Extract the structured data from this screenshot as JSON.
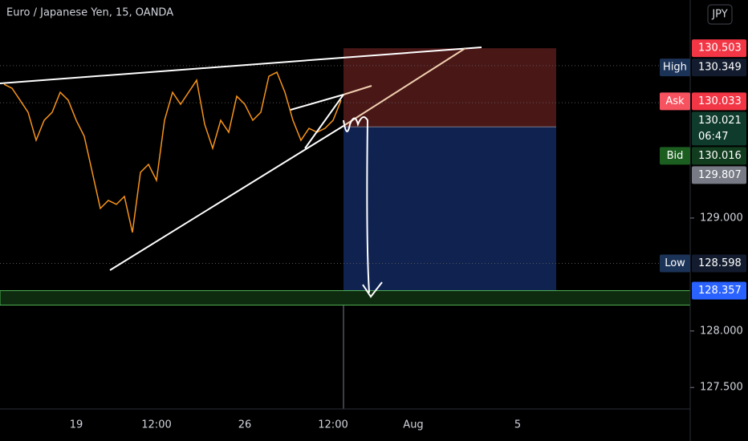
{
  "chart_data": {
    "type": "line",
    "title": "Euro / Japanese Yen, 15, OANDA",
    "currency": "JPY",
    "categories": [
      null,
      null,
      null,
      null,
      null,
      null,
      null,
      null,
      null,
      "19",
      null,
      null,
      null,
      null,
      null,
      null,
      null,
      null,
      null,
      "12:00",
      null,
      null,
      null,
      null,
      null,
      null,
      null,
      null,
      null,
      null,
      "26",
      null,
      null,
      null,
      null,
      null,
      null,
      null,
      null,
      null,
      null,
      "12:00",
      null,
      null,
      null,
      null,
      null,
      null,
      null,
      null,
      null,
      "Aug",
      null,
      null,
      null,
      null,
      null,
      null,
      null,
      null,
      null,
      null,
      null,
      null,
      "5",
      null,
      null,
      null,
      null,
      null,
      null,
      null,
      null,
      null,
      null,
      null,
      null,
      null,
      null,
      null,
      null,
      null,
      null,
      null,
      null,
      null
    ],
    "values": [
      130.184,
      130.149,
      130.043,
      129.936,
      129.688,
      129.865,
      129.936,
      130.113,
      130.043,
      129.865,
      129.723,
      129.404,
      129.085,
      129.156,
      129.121,
      129.191,
      128.872,
      129.404,
      129.475,
      129.333,
      129.865,
      130.113,
      130.007,
      130.113,
      130.22,
      129.83,
      129.617,
      129.865,
      129.759,
      130.078,
      130.007,
      129.865,
      129.936,
      130.255,
      130.291,
      130.113,
      129.865,
      129.688,
      129.794,
      129.759,
      129.794,
      129.865,
      130.043,
      null,
      null,
      null,
      null,
      null,
      null,
      null,
      null,
      null,
      null,
      null,
      null,
      null,
      null,
      null,
      null,
      null,
      null,
      null,
      null,
      null,
      null,
      null,
      null,
      null,
      null,
      null,
      null,
      null,
      null,
      null,
      null,
      null,
      null,
      null,
      null,
      null,
      null,
      null,
      null,
      null,
      null,
      null
    ],
    "color": "#f7931a",
    "ylim": [
      127.31,
      130.93
    ],
    "yticks": [
      {
        "value": 127.5,
        "label": "127.500"
      },
      {
        "value": 128,
        "label": "128.000"
      },
      {
        "value": 129,
        "label": "129.000"
      }
    ],
    "price_labels": [
      {
        "value": 130.503,
        "color": "#f23645"
      },
      {
        "tag": "High",
        "value": 130.349,
        "color": "#131c2e",
        "tag_color": "#1c3358"
      },
      {
        "tag": "Ask",
        "value": 130.033,
        "color": "#f23645",
        "tag_color": "#f7525f"
      },
      {
        "value": 130.021,
        "countdown": "06:47",
        "color": "#0f3b2c"
      },
      {
        "tag": "Bid",
        "value": 130.016,
        "color": "#113d1e",
        "tag_color": "#1b5e20"
      },
      {
        "value": 129.807,
        "color": "#787b86"
      },
      {
        "tag": "Low",
        "value": 128.598,
        "color": "#131c2e",
        "tag_color": "#1c3358"
      },
      {
        "value": 128.357,
        "color": "#2962ff"
      }
    ]
  }
}
